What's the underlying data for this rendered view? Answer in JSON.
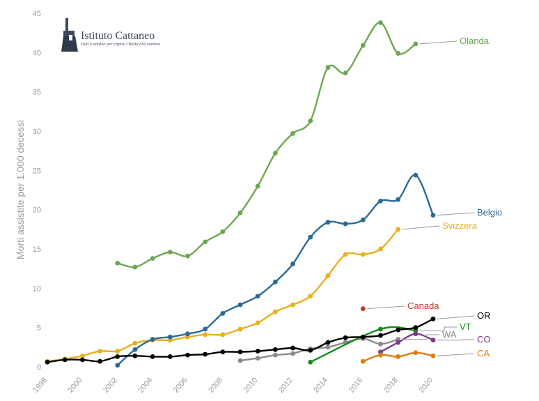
{
  "logo": {
    "title": "Istituto Cattaneo",
    "subtitle": "Dati e analisi per capire l'Italia che cambia"
  },
  "chart_data": {
    "type": "line",
    "title": "",
    "xlabel": "",
    "ylabel": "Morti assistite per 1.000 decessi",
    "xlim": [
      1998,
      2020
    ],
    "ylim": [
      0,
      45
    ],
    "yticks": [
      0,
      5,
      10,
      15,
      20,
      25,
      30,
      35,
      40,
      45
    ],
    "xticks": [
      1998,
      2000,
      2002,
      2004,
      2006,
      2008,
      2010,
      2012,
      2014,
      2016,
      2018,
      2020
    ],
    "series": [
      {
        "name": "Olanda",
        "color": "#6aa84f",
        "x": [
          2002,
          2003,
          2004,
          2005,
          2006,
          2007,
          2008,
          2009,
          2010,
          2011,
          2012,
          2013,
          2014,
          2015,
          2016,
          2017,
          2018,
          2019
        ],
        "y": [
          13.2,
          12.7,
          13.8,
          14.6,
          14.1,
          15.9,
          17.2,
          19.6,
          23.0,
          27.2,
          29.7,
          31.3,
          38.1,
          37.4,
          40.9,
          43.8,
          39.9,
          41.1
        ]
      },
      {
        "name": "Belgio",
        "color": "#2a6a96",
        "x": [
          2002,
          2003,
          2004,
          2005,
          2006,
          2007,
          2008,
          2009,
          2010,
          2011,
          2012,
          2013,
          2014,
          2015,
          2016,
          2017,
          2018,
          2019,
          2020
        ],
        "y": [
          0.2,
          2.2,
          3.5,
          3.8,
          4.2,
          4.8,
          6.8,
          7.9,
          9.0,
          10.8,
          13.1,
          16.5,
          18.4,
          18.2,
          18.7,
          21.1,
          21.3,
          24.4,
          19.3
        ]
      },
      {
        "name": "Svizzera",
        "color": "#e8b020",
        "x": [
          1998,
          1999,
          2000,
          2001,
          2002,
          2003,
          2004,
          2005,
          2006,
          2007,
          2008,
          2009,
          2010,
          2011,
          2012,
          2013,
          2014,
          2015,
          2016,
          2017,
          2018
        ],
        "y": [
          0.7,
          1.0,
          1.4,
          2.0,
          2.0,
          3.0,
          3.4,
          3.4,
          3.8,
          4.1,
          4.1,
          4.8,
          5.6,
          7.0,
          7.9,
          9.0,
          11.6,
          14.3,
          14.3,
          15.0,
          17.5
        ]
      },
      {
        "name": "Canada",
        "color": "#c0392b",
        "x": [
          2016
        ],
        "y": [
          7.4
        ]
      },
      {
        "name": "OR",
        "color": "#000000",
        "x": [
          1998,
          1999,
          2000,
          2001,
          2002,
          2003,
          2004,
          2005,
          2006,
          2007,
          2008,
          2009,
          2010,
          2011,
          2012,
          2013,
          2014,
          2015,
          2016,
          2017,
          2018,
          2019,
          2020
        ],
        "y": [
          0.6,
          0.9,
          0.9,
          0.7,
          1.3,
          1.4,
          1.3,
          1.3,
          1.5,
          1.6,
          1.9,
          1.9,
          2.0,
          2.2,
          2.4,
          2.1,
          3.1,
          3.7,
          3.8,
          4.0,
          4.7,
          5.0,
          6.1
        ]
      },
      {
        "name": "VT",
        "color": "#1a8a1a",
        "x": [
          2013,
          2017,
          2019
        ],
        "y": [
          0.6,
          4.8,
          4.6
        ]
      },
      {
        "name": "WA",
        "color": "#8a8a8a",
        "x": [
          2009,
          2010,
          2011,
          2012,
          2013,
          2014,
          2015,
          2016,
          2017,
          2018
        ],
        "y": [
          0.8,
          1.1,
          1.5,
          1.7,
          2.3,
          2.5,
          3.1,
          3.6,
          2.9,
          3.5
        ]
      },
      {
        "name": "CO",
        "color": "#7b3a8c",
        "x": [
          2017,
          2018,
          2019,
          2020
        ],
        "y": [
          1.9,
          3.1,
          4.2,
          3.4
        ]
      },
      {
        "name": "CA",
        "color": "#e07b10",
        "x": [
          2016,
          2017,
          2018,
          2019,
          2020
        ],
        "y": [
          0.7,
          1.5,
          1.3,
          1.8,
          1.4
        ]
      }
    ]
  }
}
